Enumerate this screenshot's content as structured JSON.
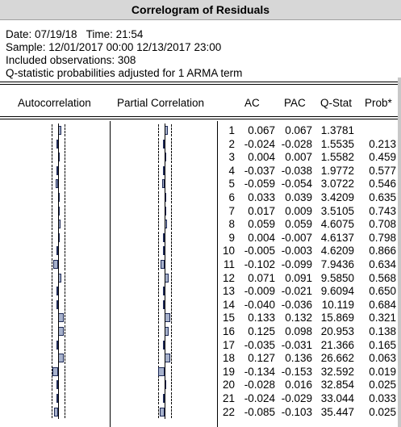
{
  "window": {
    "title": "Correlogram of Residuals"
  },
  "header": {
    "date_line": "Date: 07/19/18   Time: 21:54",
    "sample_line": "Sample: 12/01/2017 00:00 12/13/2017 23:00",
    "obs_line": "Included observations: 308",
    "note_line": "Q-statistic probabilities adjusted for 1 ARMA term"
  },
  "columns": {
    "autocorrelation": "Autocorrelation",
    "partial_correlation": "Partial Correlation",
    "ac": "AC",
    "pac": "PAC",
    "qstat": "Q-Stat",
    "prob": "Prob*"
  },
  "rows": [
    {
      "lag": "1",
      "ac": "0.067",
      "pac": "0.067",
      "q": "1.3781",
      "prob": ""
    },
    {
      "lag": "2",
      "ac": "-0.024",
      "pac": "-0.028",
      "q": "1.5535",
      "prob": "0.213"
    },
    {
      "lag": "3",
      "ac": "0.004",
      "pac": "0.007",
      "q": "1.5582",
      "prob": "0.459"
    },
    {
      "lag": "4",
      "ac": "-0.037",
      "pac": "-0.038",
      "q": "1.9772",
      "prob": "0.577"
    },
    {
      "lag": "5",
      "ac": "-0.059",
      "pac": "-0.054",
      "q": "3.0722",
      "prob": "0.546"
    },
    {
      "lag": "6",
      "ac": "0.033",
      "pac": "0.039",
      "q": "3.4209",
      "prob": "0.635"
    },
    {
      "lag": "7",
      "ac": "0.017",
      "pac": "0.009",
      "q": "3.5105",
      "prob": "0.743"
    },
    {
      "lag": "8",
      "ac": "0.059",
      "pac": "0.059",
      "q": "4.6075",
      "prob": "0.708"
    },
    {
      "lag": "9",
      "ac": "0.004",
      "pac": "-0.007",
      "q": "4.6137",
      "prob": "0.798"
    },
    {
      "lag": "10",
      "ac": "-0.005",
      "pac": "-0.003",
      "q": "4.6209",
      "prob": "0.866"
    },
    {
      "lag": "11",
      "ac": "-0.102",
      "pac": "-0.099",
      "q": "7.9436",
      "prob": "0.634"
    },
    {
      "lag": "12",
      "ac": "0.071",
      "pac": "0.091",
      "q": "9.5850",
      "prob": "0.568"
    },
    {
      "lag": "13",
      "ac": "-0.009",
      "pac": "-0.021",
      "q": "9.6094",
      "prob": "0.650"
    },
    {
      "lag": "14",
      "ac": "-0.040",
      "pac": "-0.036",
      "q": "10.119",
      "prob": "0.684"
    },
    {
      "lag": "15",
      "ac": "0.133",
      "pac": "0.132",
      "q": "15.869",
      "prob": "0.321"
    },
    {
      "lag": "16",
      "ac": "0.125",
      "pac": "0.098",
      "q": "20.953",
      "prob": "0.138"
    },
    {
      "lag": "17",
      "ac": "-0.035",
      "pac": "-0.031",
      "q": "21.366",
      "prob": "0.165"
    },
    {
      "lag": "18",
      "ac": "0.127",
      "pac": "0.136",
      "q": "26.662",
      "prob": "0.063"
    },
    {
      "lag": "19",
      "ac": "-0.134",
      "pac": "-0.153",
      "q": "32.592",
      "prob": "0.019"
    },
    {
      "lag": "20",
      "ac": "-0.028",
      "pac": "0.016",
      "q": "32.854",
      "prob": "0.025"
    },
    {
      "lag": "21",
      "ac": "-0.024",
      "pac": "-0.029",
      "q": "33.044",
      "prob": "0.033"
    },
    {
      "lag": "22",
      "ac": "-0.085",
      "pac": "-0.103",
      "q": "35.447",
      "prob": "0.025"
    }
  ],
  "colors": {
    "bar_fill": "#a7b2cc",
    "bar_border": "#1e2a57",
    "titlebar": "#d7d7d7"
  }
}
